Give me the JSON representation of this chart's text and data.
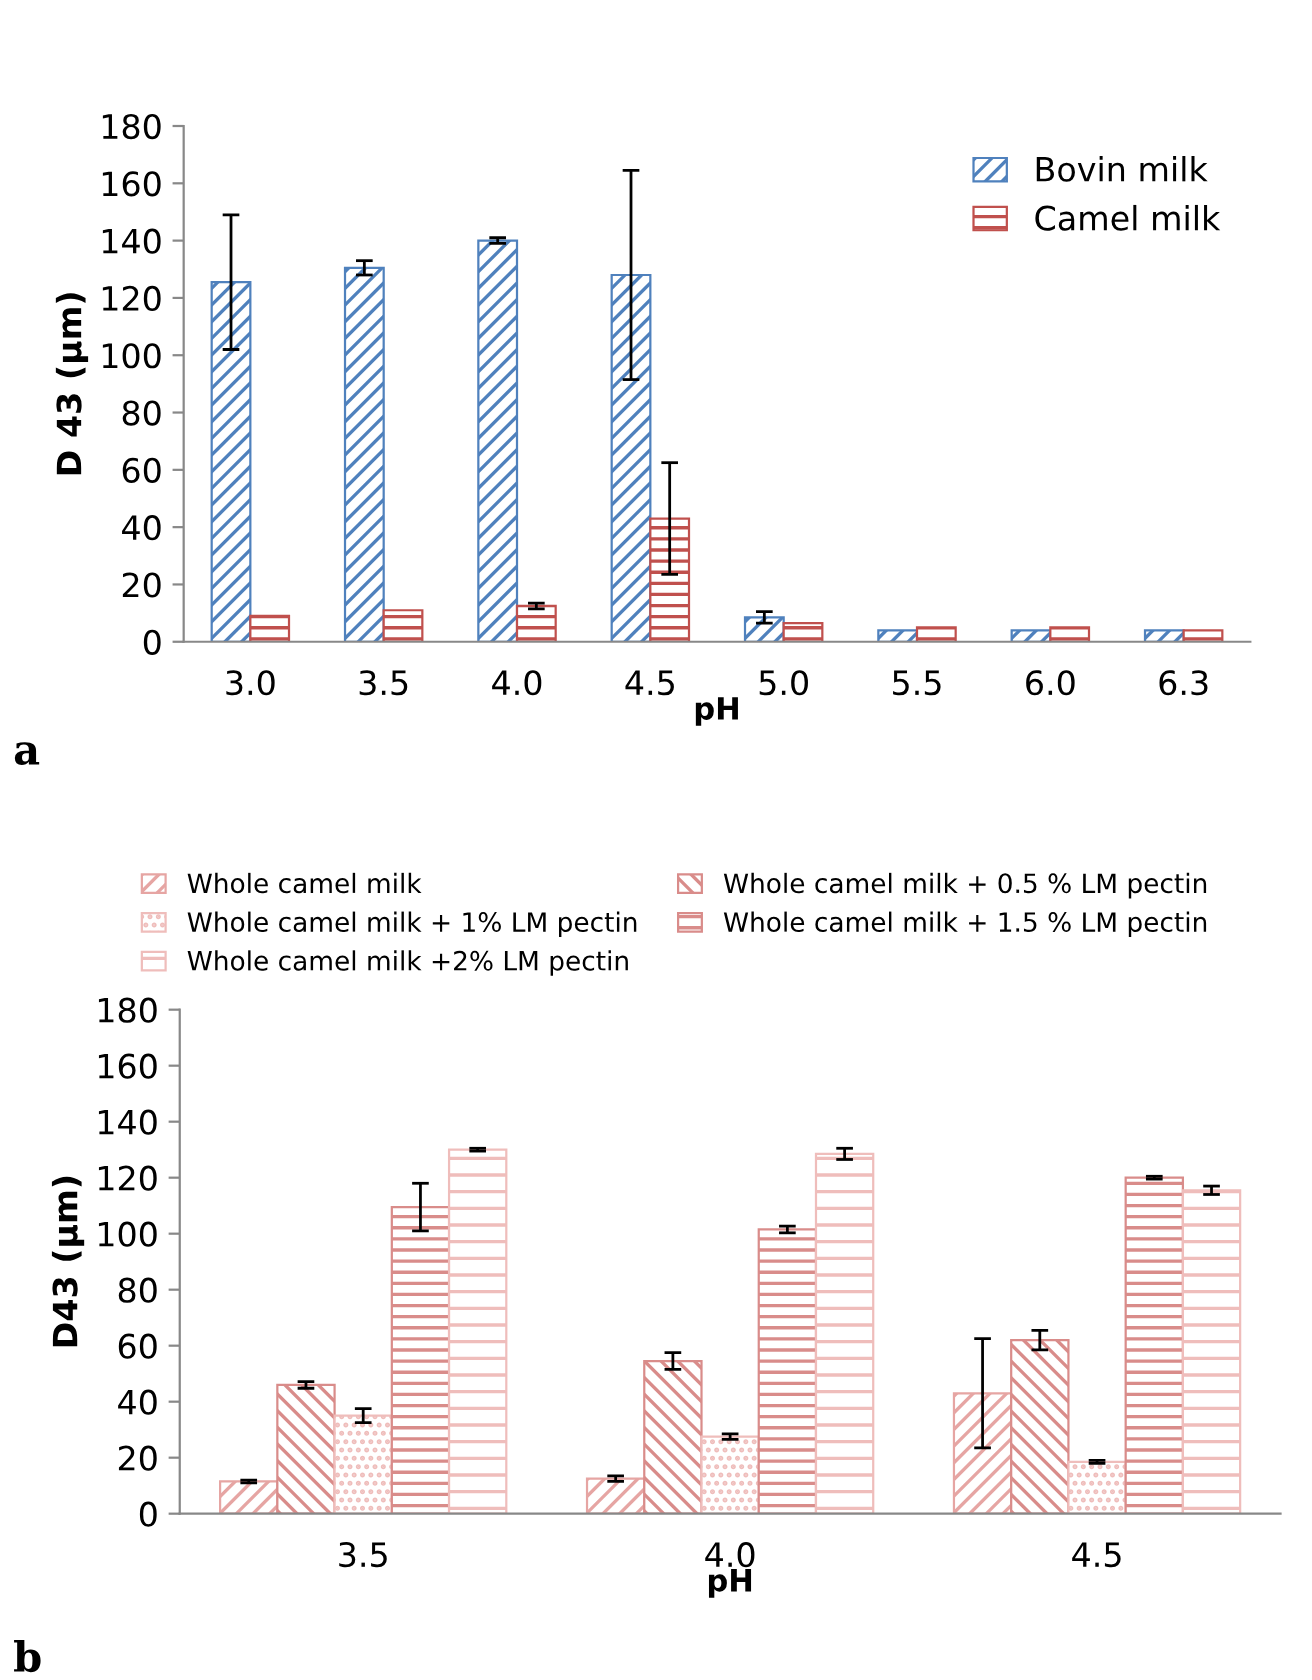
{
  "chart_data": [
    {
      "type": "bar",
      "xlabel": "pH",
      "ylabel": "D 43 (µm)",
      "categories": [
        "3.0",
        "3.5",
        "4.0",
        "4.5",
        "5.0",
        "5.5",
        "6.0",
        "6.3"
      ],
      "ylim": [
        0,
        180
      ],
      "yticks": [
        0,
        20,
        40,
        60,
        80,
        100,
        120,
        140,
        160,
        180
      ],
      "grid": false,
      "legend": "top right",
      "annotations": [
        "a"
      ],
      "series": [
        {
          "name": "Bovin milk",
          "color": "#4f81bd",
          "values": [
            125.5,
            130.5,
            140,
            128,
            8.5,
            4,
            4,
            4
          ],
          "errors": [
            23.5,
            2.5,
            1,
            36.5,
            2,
            null,
            null,
            null
          ]
        },
        {
          "name": "Camel milk",
          "color": "#c0504d",
          "values": [
            9,
            11,
            12.5,
            43,
            6.5,
            5,
            5,
            4
          ],
          "errors": [
            null,
            null,
            1,
            19.5,
            null,
            null,
            null,
            null
          ]
        }
      ]
    },
    {
      "type": "bar",
      "xlabel": "pH",
      "ylabel": "D43 (µm)",
      "categories": [
        "3.5",
        "4.0",
        "4.5"
      ],
      "ylim": [
        0,
        180
      ],
      "yticks": [
        0,
        20,
        40,
        60,
        80,
        100,
        120,
        140,
        160,
        180
      ],
      "grid": false,
      "legend": "top",
      "annotations": [
        "b"
      ],
      "series": [
        {
          "name": "Whole camel milk",
          "color": "#e6a5a3",
          "values": [
            11.5,
            12.5,
            43
          ],
          "errors": [
            0.5,
            1,
            19.5
          ]
        },
        {
          "name": "Whole camel milk + 0.5 % LM pectin",
          "color": "#d98c8a",
          "values": [
            46,
            54.5,
            62
          ],
          "errors": [
            1.2,
            3,
            3.5
          ]
        },
        {
          "name": "Whole camel milk + 1% LM pectin",
          "color": "#efbdbb",
          "values": [
            35,
            27.5,
            18.5
          ],
          "errors": [
            2.5,
            1,
            0.5
          ]
        },
        {
          "name": "Whole camel milk + 1.5 % LM pectin",
          "color": "#d98c8a",
          "values": [
            109.5,
            101.5,
            120
          ],
          "errors": [
            8.5,
            1.2,
            0.5
          ]
        },
        {
          "name": "Whole camel milk +2% LM pectin",
          "color": "#efbdbb",
          "values": [
            130,
            128.5,
            115.5
          ],
          "errors": [
            0.5,
            2,
            1.5
          ]
        }
      ]
    }
  ]
}
